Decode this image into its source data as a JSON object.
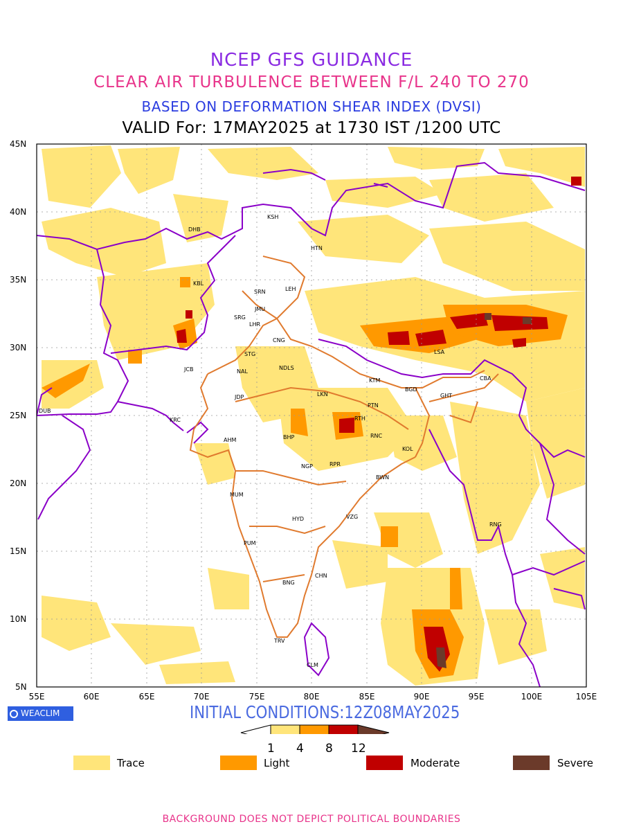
{
  "titles": {
    "line1": "NCEP GFS GUIDANCE",
    "line2": "CLEAR AIR TURBULENCE BETWEEN F/L 240 TO 270",
    "line3": "BASED ON DEFORMATION SHEAR INDEX (DVSI)",
    "line4": "VALID For: 17MAY2025 at 1730 IST /1200 UTC"
  },
  "axes": {
    "lat_labels": [
      "45N",
      "40N",
      "35N",
      "30N",
      "25N",
      "20N",
      "15N",
      "10N",
      "5N"
    ],
    "lon_labels": [
      "55E",
      "60E",
      "65E",
      "70E",
      "75E",
      "80E",
      "85E",
      "90E",
      "95E",
      "100E",
      "105E"
    ]
  },
  "cities": [
    "KSH",
    "DHB",
    "HTN",
    "KBL",
    "SRN",
    "LEH",
    "JMU",
    "SRG",
    "LHR",
    "CNG",
    "STG",
    "NDLS",
    "JCB",
    "NAL",
    "LSA",
    "KTM",
    "CBA",
    "BGD",
    "GHT",
    "JDP",
    "LKN",
    "PTN",
    "DUB",
    "RTH",
    "KRC",
    "BHP",
    "RNC",
    "AHM",
    "KOL",
    "NGP",
    "RPR",
    "BWN",
    "MUM",
    "HYD",
    "VZG",
    "RNG",
    "PUM",
    "CHN",
    "BNG",
    "TRV",
    "CLM"
  ],
  "brand": "WEACLIM",
  "initial_conditions": "INITIAL CONDITIONS:12Z08MAY2025",
  "colorbar": {
    "ticks": [
      "1",
      "4",
      "8",
      "12"
    ],
    "colors": [
      "#ffe57a",
      "#ff9900",
      "#c00000",
      "#6b3a2a"
    ]
  },
  "legend": [
    {
      "label": "Trace",
      "color": "#ffe57a"
    },
    {
      "label": "Light",
      "color": "#ff9900"
    },
    {
      "label": "Moderate",
      "color": "#c00000"
    },
    {
      "label": "Severe",
      "color": "#6b3a2a"
    }
  ],
  "footer": "BACKGROUND DOES NOT DEPICT POLITICAL BOUNDARIES"
}
